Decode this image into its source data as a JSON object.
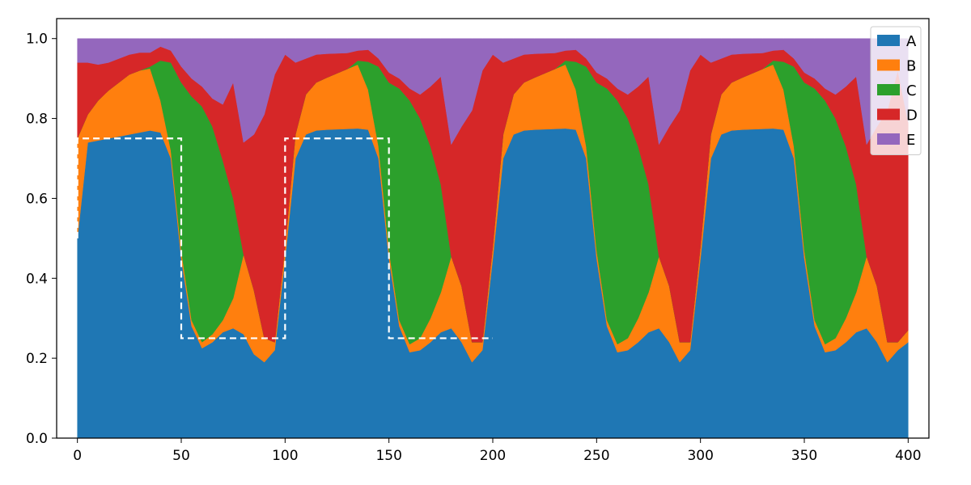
{
  "chart_data": {
    "type": "area",
    "stacked": true,
    "xlim": [
      -10,
      410
    ],
    "ylim": [
      0,
      1.05
    ],
    "x": [
      0,
      5,
      10,
      15,
      20,
      25,
      30,
      35,
      40,
      45,
      50,
      55,
      60,
      65,
      70,
      75,
      80,
      85,
      90,
      95,
      100,
      105,
      110,
      115,
      120,
      125,
      130,
      135,
      140,
      145,
      150,
      155,
      160,
      165,
      170,
      175,
      180,
      185,
      190,
      195,
      200,
      205,
      210,
      215,
      220,
      225,
      230,
      235,
      240,
      245,
      250,
      255,
      260,
      265,
      270,
      275,
      280,
      285,
      290,
      295,
      300,
      305,
      310,
      315,
      320,
      325,
      330,
      335,
      340,
      345,
      350,
      355,
      360,
      365,
      370,
      375,
      380,
      385,
      390,
      395,
      400
    ],
    "series": [
      {
        "name": "A",
        "color": "#1f77b4",
        "values": [
          0.5,
          0.74,
          0.745,
          0.75,
          0.755,
          0.76,
          0.765,
          0.77,
          0.765,
          0.7,
          0.45,
          0.28,
          0.225,
          0.24,
          0.265,
          0.275,
          0.26,
          0.21,
          0.19,
          0.22,
          0.45,
          0.7,
          0.76,
          0.77,
          0.772,
          0.773,
          0.774,
          0.775,
          0.772,
          0.7,
          0.45,
          0.28,
          0.215,
          0.22,
          0.24,
          0.265,
          0.275,
          0.24,
          0.19,
          0.22,
          0.45,
          0.7,
          0.76,
          0.77,
          0.772,
          0.773,
          0.774,
          0.775,
          0.772,
          0.7,
          0.45,
          0.28,
          0.215,
          0.22,
          0.24,
          0.265,
          0.275,
          0.24,
          0.19,
          0.22,
          0.45,
          0.7,
          0.76,
          0.77,
          0.772,
          0.773,
          0.774,
          0.775,
          0.772,
          0.7,
          0.45,
          0.28,
          0.215,
          0.22,
          0.24,
          0.265,
          0.275,
          0.24,
          0.19,
          0.22,
          0.24
        ]
      },
      {
        "name": "B",
        "color": "#ff7f0e",
        "values": [
          0.25,
          0.07,
          0.1,
          0.12,
          0.135,
          0.15,
          0.155,
          0.155,
          0.08,
          0.02,
          0.02,
          0.015,
          0.015,
          0.02,
          0.03,
          0.075,
          0.2,
          0.16,
          0.06,
          0.02,
          0.03,
          0.06,
          0.1,
          0.12,
          0.13,
          0.14,
          0.15,
          0.16,
          0.1,
          0.03,
          0.02,
          0.015,
          0.02,
          0.03,
          0.06,
          0.1,
          0.18,
          0.14,
          0.05,
          0.02,
          0.03,
          0.06,
          0.1,
          0.12,
          0.13,
          0.14,
          0.15,
          0.16,
          0.1,
          0.03,
          0.02,
          0.015,
          0.02,
          0.03,
          0.06,
          0.1,
          0.18,
          0.14,
          0.05,
          0.02,
          0.03,
          0.06,
          0.1,
          0.12,
          0.13,
          0.14,
          0.15,
          0.16,
          0.1,
          0.03,
          0.02,
          0.015,
          0.02,
          0.03,
          0.06,
          0.1,
          0.18,
          0.14,
          0.05,
          0.02,
          0.03
        ]
      },
      {
        "name": "C",
        "color": "#2ca02c",
        "values": [
          0.0,
          0.0,
          0.0,
          0.0,
          0.0,
          0.0,
          0.0,
          0.005,
          0.1,
          0.22,
          0.42,
          0.56,
          0.59,
          0.52,
          0.4,
          0.25,
          0.0,
          0.0,
          0.0,
          0.0,
          0.0,
          0.0,
          0.0,
          0.0,
          0.0,
          0.0,
          0.0,
          0.01,
          0.07,
          0.2,
          0.42,
          0.58,
          0.61,
          0.55,
          0.43,
          0.27,
          0.0,
          0.0,
          0.0,
          0.0,
          0.0,
          0.0,
          0.0,
          0.0,
          0.0,
          0.0,
          0.0,
          0.01,
          0.07,
          0.2,
          0.42,
          0.58,
          0.61,
          0.55,
          0.43,
          0.27,
          0.0,
          0.0,
          0.0,
          0.0,
          0.0,
          0.0,
          0.0,
          0.0,
          0.0,
          0.0,
          0.0,
          0.01,
          0.07,
          0.2,
          0.42,
          0.58,
          0.61,
          0.55,
          0.43,
          0.27,
          0.0,
          0.0,
          0.0,
          0.0,
          0.0
        ]
      },
      {
        "name": "D",
        "color": "#d62728",
        "values": [
          0.19,
          0.13,
          0.09,
          0.07,
          0.06,
          0.05,
          0.045,
          0.035,
          0.035,
          0.03,
          0.04,
          0.045,
          0.05,
          0.07,
          0.14,
          0.29,
          0.28,
          0.39,
          0.56,
          0.67,
          0.48,
          0.18,
          0.09,
          0.07,
          0.06,
          0.05,
          0.04,
          0.025,
          0.03,
          0.02,
          0.025,
          0.025,
          0.03,
          0.06,
          0.15,
          0.27,
          0.28,
          0.4,
          0.58,
          0.68,
          0.48,
          0.18,
          0.09,
          0.07,
          0.06,
          0.05,
          0.04,
          0.025,
          0.03,
          0.02,
          0.025,
          0.025,
          0.03,
          0.06,
          0.15,
          0.27,
          0.28,
          0.4,
          0.58,
          0.68,
          0.48,
          0.18,
          0.09,
          0.07,
          0.06,
          0.05,
          0.04,
          0.025,
          0.03,
          0.02,
          0.025,
          0.025,
          0.03,
          0.06,
          0.15,
          0.27,
          0.28,
          0.4,
          0.58,
          0.68,
          0.52
        ]
      },
      {
        "name": "E",
        "color": "#9467bd",
        "values": [
          0.06,
          0.06,
          0.065,
          0.06,
          0.05,
          0.04,
          0.035,
          0.035,
          0.02,
          0.03,
          0.07,
          0.1,
          0.12,
          0.15,
          0.165,
          0.11,
          0.26,
          0.24,
          0.19,
          0.09,
          0.04,
          0.06,
          0.05,
          0.04,
          0.038,
          0.037,
          0.036,
          0.03,
          0.028,
          0.05,
          0.085,
          0.1,
          0.125,
          0.14,
          0.12,
          0.095,
          0.265,
          0.22,
          0.18,
          0.08,
          0.04,
          0.06,
          0.05,
          0.04,
          0.038,
          0.037,
          0.036,
          0.03,
          0.028,
          0.05,
          0.085,
          0.1,
          0.125,
          0.14,
          0.12,
          0.095,
          0.265,
          0.22,
          0.18,
          0.08,
          0.04,
          0.06,
          0.05,
          0.04,
          0.038,
          0.037,
          0.036,
          0.03,
          0.028,
          0.05,
          0.085,
          0.1,
          0.125,
          0.14,
          0.12,
          0.095,
          0.265,
          0.22,
          0.18,
          0.08,
          0.21
        ]
      }
    ],
    "overlay": {
      "style": "dashed",
      "color": "#ffffff",
      "x": [
        0,
        0,
        50,
        50,
        100,
        100,
        150,
        150,
        200
      ],
      "y": [
        0.5,
        0.75,
        0.75,
        0.25,
        0.25,
        0.75,
        0.75,
        0.25,
        0.25
      ]
    },
    "x_ticks": [
      0,
      50,
      100,
      150,
      200,
      250,
      300,
      350,
      400
    ],
    "y_ticks": [
      0.0,
      0.2,
      0.4,
      0.6,
      0.8,
      1.0
    ],
    "y_tick_labels": [
      "0.0",
      "0.2",
      "0.4",
      "0.6",
      "0.8",
      "1.0"
    ],
    "grid": false,
    "legend": {
      "placement": "top-right",
      "entries": [
        "A",
        "B",
        "C",
        "D",
        "E"
      ]
    },
    "title": "",
    "xlabel": "",
    "ylabel": ""
  }
}
